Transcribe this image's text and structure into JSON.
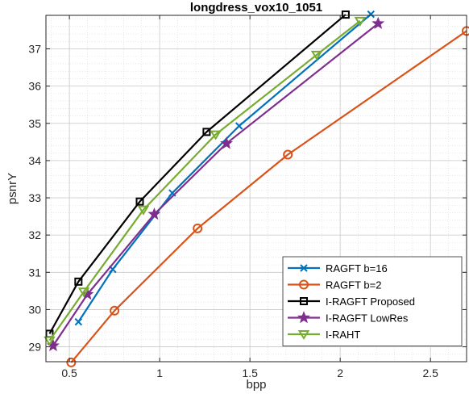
{
  "chart_data": {
    "type": "line",
    "title": "longdress_vox10_1051",
    "xlabel": "bpp",
    "ylabel": "psnrY",
    "xlim": [
      0.37,
      2.7
    ],
    "ylim": [
      28.6,
      37.9
    ],
    "xticks": [
      0.5,
      1,
      1.5,
      2,
      2.5
    ],
    "xtick_labels": [
      "0.5",
      "1",
      "1.5",
      "2",
      "2.5"
    ],
    "yticks": [
      29,
      30,
      31,
      32,
      33,
      34,
      35,
      36,
      37
    ],
    "ytick_labels": [
      "29",
      "30",
      "31",
      "32",
      "33",
      "34",
      "35",
      "36",
      "37"
    ],
    "grid": true,
    "minor_grid": true,
    "legend_position": "bottom-right",
    "series": [
      {
        "name": "RAGFT b=16",
        "color": "#0072BD",
        "marker": "x",
        "x": [
          0.55,
          0.74,
          1.07,
          1.44,
          2.17
        ],
        "y": [
          29.67,
          31.08,
          33.13,
          34.93,
          37.93
        ]
      },
      {
        "name": "RAGFT b=2",
        "color": "#D95319",
        "marker": "circle",
        "x": [
          0.51,
          0.75,
          1.21,
          1.71,
          2.7
        ],
        "y": [
          28.58,
          29.97,
          32.18,
          34.16,
          37.48
        ]
      },
      {
        "name": "I-RAGFT Proposed",
        "color": "#000000",
        "marker": "square",
        "x": [
          0.39,
          0.55,
          0.89,
          1.26,
          2.03
        ],
        "y": [
          29.35,
          30.75,
          32.9,
          34.77,
          37.92
        ]
      },
      {
        "name": "I-RAGFT LowRes",
        "color": "#7E2F8E",
        "marker": "star",
        "x": [
          0.41,
          0.6,
          0.97,
          1.37,
          2.21
        ],
        "y": [
          29.03,
          30.41,
          32.56,
          34.46,
          37.68
        ]
      },
      {
        "name": "I-RAHT",
        "color": "#77AC30",
        "marker": "triangle-down",
        "x": [
          0.39,
          0.58,
          0.91,
          1.31,
          1.87,
          2.11
        ],
        "y": [
          29.17,
          30.48,
          32.68,
          34.7,
          36.84,
          37.75
        ]
      }
    ]
  }
}
